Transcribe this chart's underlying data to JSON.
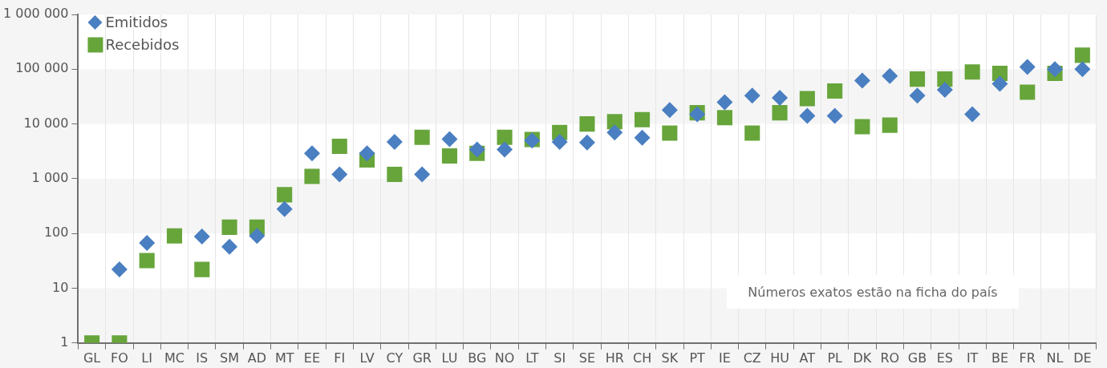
{
  "chart_data": {
    "type": "scatter",
    "categories": [
      "GL",
      "FO",
      "LI",
      "MC",
      "IS",
      "SM",
      "AD",
      "MT",
      "EE",
      "FI",
      "LV",
      "CY",
      "GR",
      "LU",
      "BG",
      "NO",
      "LT",
      "SI",
      "SE",
      "HR",
      "CH",
      "SK",
      "PT",
      "IE",
      "CZ",
      "HU",
      "AT",
      "PL",
      "DK",
      "RO",
      "GB",
      "ES",
      "IT",
      "BE",
      "FR",
      "NL",
      "DE"
    ],
    "series": [
      {
        "name": "Emitidos",
        "color": "#4a7fc1",
        "marker": "diamond",
        "values": [
          null,
          22,
          67,
          null,
          88,
          57,
          90,
          280,
          2900,
          1200,
          2900,
          4700,
          1200,
          5300,
          3400,
          3400,
          5000,
          4700,
          4600,
          7000,
          5600,
          18000,
          15000,
          25000,
          33000,
          30000,
          14000,
          14000,
          62000,
          75000,
          33000,
          42000,
          15000,
          54000,
          110000,
          100000,
          100000
        ]
      },
      {
        "name": "Recebidos",
        "color": "#67a53b",
        "marker": "square",
        "values": [
          1,
          1,
          32,
          90,
          22,
          130,
          130,
          510,
          1100,
          3900,
          2200,
          1200,
          5700,
          2600,
          2900,
          5700,
          5200,
          7000,
          10000,
          11000,
          12000,
          6800,
          16000,
          13000,
          6800,
          16000,
          29000,
          40000,
          8900,
          9500,
          66000,
          66000,
          89000,
          84000,
          38000,
          84000,
          180000
        ]
      }
    ],
    "log": "y",
    "ylim": [
      1,
      1000000
    ],
    "yticks": [
      {
        "value": 1,
        "label": "1"
      },
      {
        "value": 10,
        "label": "10"
      },
      {
        "value": 100,
        "label": "100"
      },
      {
        "value": 1000,
        "label": "1 000"
      },
      {
        "value": 10000,
        "label": "10 000"
      },
      {
        "value": 100000,
        "label": "100 000"
      },
      {
        "value": 1000000,
        "label": "1 000 000"
      }
    ],
    "grid": true,
    "legend": "top left",
    "annotations": [
      "Números exatos estão na ficha do país"
    ]
  }
}
